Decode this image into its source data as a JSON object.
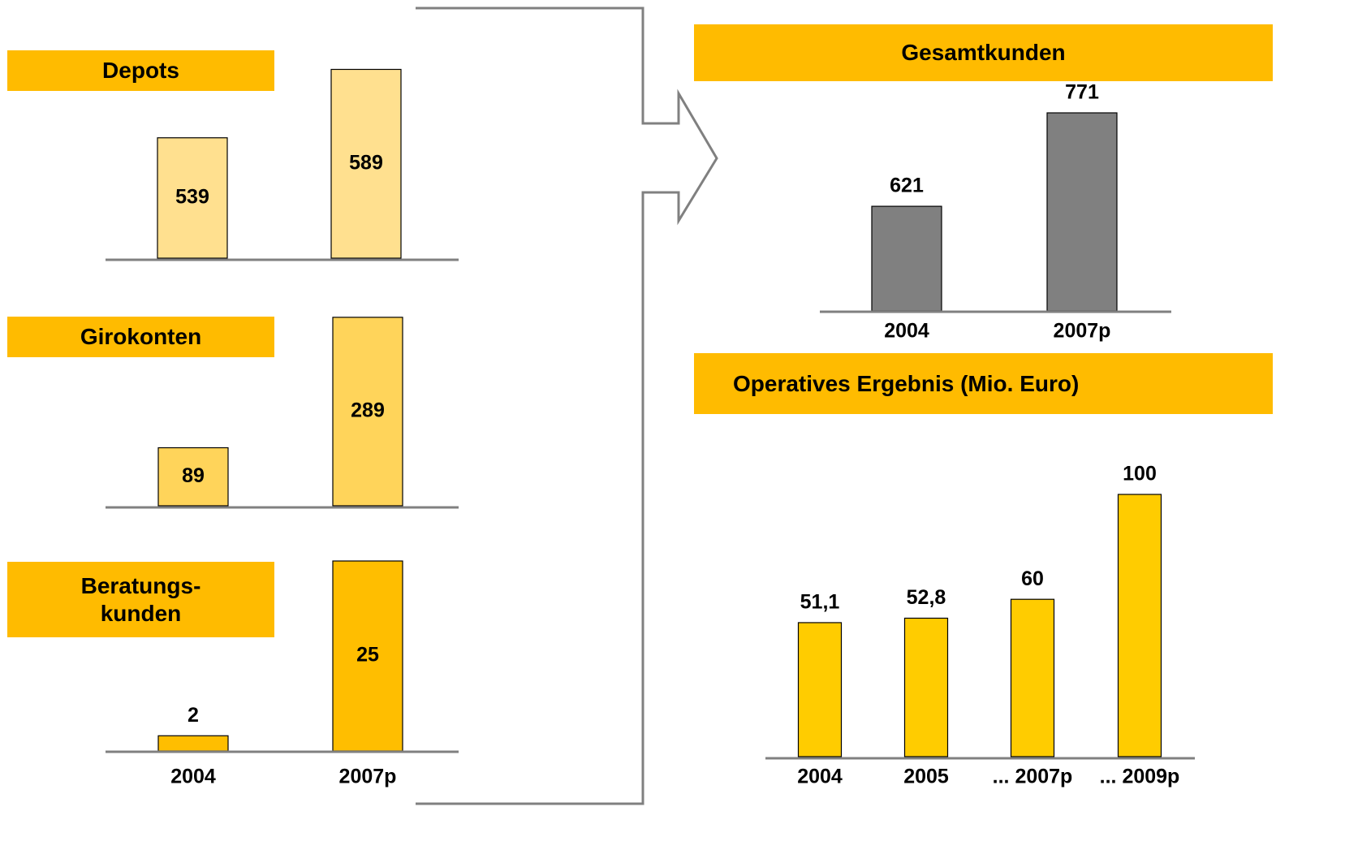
{
  "chart_data": [
    {
      "type": "bar",
      "title": "Depots",
      "categories": [
        null,
        null
      ],
      "values": [
        539,
        589
      ],
      "color": "#ffe08f",
      "ylim": [
        451,
        597
      ],
      "labels": "inside"
    },
    {
      "type": "bar",
      "title": "Girokonten",
      "categories": [
        null,
        null
      ],
      "values": [
        89,
        289
      ],
      "color": "#ffd45a",
      "ylim": [
        0,
        300
      ],
      "labels": "inside"
    },
    {
      "type": "bar",
      "title": "Beratungs-\nkunden",
      "categories": [
        "2004",
        "2007p"
      ],
      "values": [
        2,
        25
      ],
      "color": "#ffbe00",
      "ylim": [
        0,
        25
      ],
      "labels": "inside"
    },
    {
      "type": "bar",
      "title": "Gesamtkunden",
      "categories": [
        "2004",
        "2007p"
      ],
      "values": [
        621,
        771
      ],
      "color": "#808080",
      "ylim": [
        453,
        771
      ],
      "labels": "above"
    },
    {
      "type": "bar",
      "title": "Operatives Ergebnis (Mio. Euro)",
      "categories": [
        "2004",
        "2005",
        "... 2007p",
        "... 2009p"
      ],
      "values": [
        51.1,
        52.8,
        60,
        100
      ],
      "value_labels": [
        "51,1",
        "52,8",
        "60",
        "100"
      ],
      "color": "#ffcc00",
      "ylim": [
        0,
        100
      ],
      "labels": "above"
    }
  ]
}
